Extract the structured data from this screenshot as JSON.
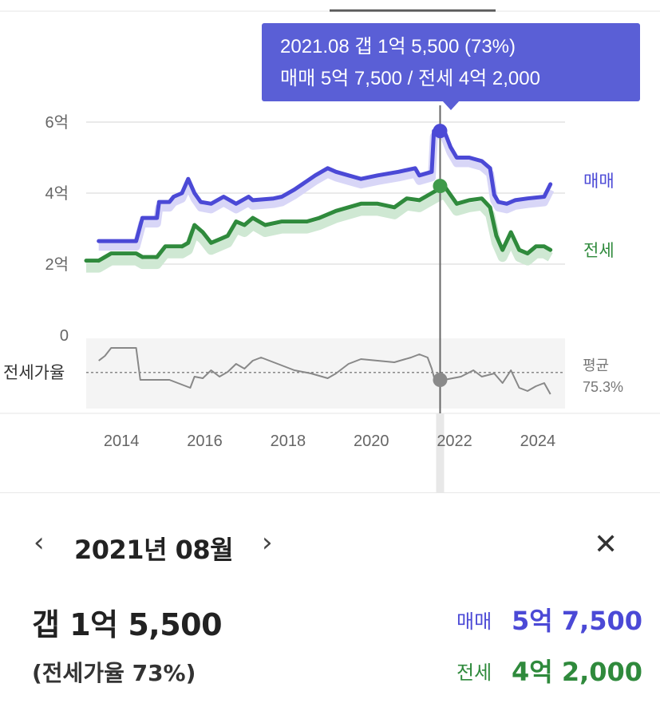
{
  "tooltip": {
    "line1": "2021.08  갭 1억 5,500 (73%)",
    "line2": "매매 5억 7,500 / 전세 4억 2,000"
  },
  "detail": {
    "period": "2021년 08월",
    "gap": "갭 1억 5,500",
    "ratio": "(전세가율 73%)",
    "sale_label": "매매",
    "sale_value": "5억 7,500",
    "jeonse_label": "전세",
    "jeonse_value": "4억 2,000"
  },
  "icons": {
    "prev": "chevron-left-icon",
    "next": "chevron-right-icon",
    "close": "close-icon"
  },
  "colors": {
    "sale": "#4b49d6",
    "jeonse": "#2f8a3c",
    "jeonse_band": "#cfe8d3",
    "sale_band": "#d8d6f7",
    "ratio_line": "#888888",
    "tooltip_bg": "#5a5fd6"
  },
  "chart_data": {
    "type": "line",
    "y_ticks": [
      "6억",
      "4억",
      "2억",
      "0"
    ],
    "y_tick_values": [
      6,
      4,
      2,
      0
    ],
    "x_ticks": [
      "2014",
      "2016",
      "2018",
      "2020",
      "2022",
      "2024"
    ],
    "x_tick_values": [
      2014,
      2016,
      2018,
      2020,
      2022,
      2024
    ],
    "xlim": [
      2013.0,
      2024.5
    ],
    "ylim": [
      0,
      6.5
    ],
    "series": [
      {
        "name": "매매",
        "x": [
          2013.3,
          2013.8,
          2014.2,
          2014.35,
          2014.7,
          2014.75,
          2015.0,
          2015.1,
          2015.3,
          2015.45,
          2015.6,
          2015.75,
          2016.0,
          2016.3,
          2016.6,
          2016.9,
          2017.0,
          2017.5,
          2017.7,
          2018.0,
          2018.5,
          2018.8,
          2019.0,
          2019.3,
          2019.6,
          2020.0,
          2020.5,
          2020.9,
          2021.0,
          2021.3,
          2021.35,
          2021.5,
          2021.6,
          2021.75,
          2021.9,
          2022.2,
          2022.5,
          2022.7,
          2022.8,
          2022.9,
          2023.1,
          2023.3,
          2023.6,
          2024.0,
          2024.15
        ],
        "values": [
          2.65,
          2.65,
          2.65,
          3.3,
          3.3,
          3.75,
          3.75,
          3.9,
          4.0,
          4.4,
          4.0,
          3.75,
          3.7,
          3.9,
          3.7,
          3.9,
          3.8,
          3.85,
          3.9,
          4.1,
          4.5,
          4.7,
          4.6,
          4.5,
          4.4,
          4.5,
          4.6,
          4.7,
          4.5,
          4.6,
          5.75,
          5.8,
          5.75,
          5.3,
          5.0,
          5.0,
          4.9,
          4.7,
          3.95,
          3.75,
          3.7,
          3.8,
          3.85,
          3.9,
          4.25
        ]
      },
      {
        "name": "전세",
        "x": [
          2013.0,
          2013.3,
          2013.6,
          2014.2,
          2014.35,
          2014.7,
          2014.9,
          2015.3,
          2015.45,
          2015.6,
          2015.8,
          2016.0,
          2016.2,
          2016.4,
          2016.6,
          2016.8,
          2017.0,
          2017.3,
          2017.7,
          2018.0,
          2018.3,
          2018.6,
          2019.0,
          2019.3,
          2019.6,
          2020.0,
          2020.4,
          2020.7,
          2021.0,
          2021.3,
          2021.6,
          2021.9,
          2022.2,
          2022.5,
          2022.7,
          2022.85,
          2023.0,
          2023.2,
          2023.4,
          2023.6,
          2023.8,
          2024.0,
          2024.15
        ],
        "values": [
          2.1,
          2.1,
          2.3,
          2.3,
          2.2,
          2.2,
          2.5,
          2.5,
          2.6,
          3.1,
          2.9,
          2.6,
          2.7,
          2.8,
          3.2,
          3.1,
          3.3,
          3.1,
          3.2,
          3.2,
          3.2,
          3.3,
          3.5,
          3.6,
          3.7,
          3.7,
          3.6,
          3.85,
          3.8,
          4.0,
          4.2,
          3.7,
          3.8,
          3.85,
          3.6,
          2.8,
          2.4,
          2.9,
          2.4,
          2.3,
          2.5,
          2.5,
          2.4
        ]
      },
      {
        "name": "전세가율",
        "x": [
          2013.3,
          2013.45,
          2013.6,
          2014.2,
          2014.3,
          2014.5,
          2015.0,
          2015.5,
          2015.6,
          2015.8,
          2016.0,
          2016.2,
          2016.4,
          2016.6,
          2016.8,
          2017.0,
          2017.2,
          2017.5,
          2018.0,
          2018.4,
          2018.8,
          2019.0,
          2019.3,
          2019.6,
          2020.0,
          2020.4,
          2020.8,
          2021.0,
          2021.2,
          2021.3,
          2021.4,
          2021.6,
          2021.8,
          2022.0,
          2022.3,
          2022.5,
          2022.8,
          2023.0,
          2023.2,
          2023.4,
          2023.6,
          2023.8,
          2024.0,
          2024.15
        ],
        "values": [
          79.0,
          80.5,
          83.0,
          83.0,
          73.0,
          73.0,
          73.0,
          70.5,
          74.0,
          73.5,
          76.0,
          74.0,
          75.5,
          78.0,
          76.5,
          79.0,
          80.0,
          78.5,
          76.0,
          75.0,
          73.5,
          75.0,
          78.0,
          79.5,
          79.0,
          78.5,
          80.0,
          81.0,
          80.0,
          76.5,
          71.5,
          73.0,
          73.5,
          74.0,
          76.0,
          74.0,
          75.0,
          72.0,
          76.0,
          70.5,
          69.5,
          71.0,
          72.0,
          68.5
        ]
      }
    ],
    "ratio_average_label": "평균",
    "ratio_average_value": "75.3%",
    "ratio_average": 75.3,
    "ratio_panel_label": "전세가율",
    "ratio_ylim": [
      64,
      86
    ],
    "selected": {
      "x": 2021.5,
      "sale": 5.75,
      "jeonse": 4.2,
      "ratio": 73.0
    },
    "grid": true,
    "legend": "right"
  }
}
